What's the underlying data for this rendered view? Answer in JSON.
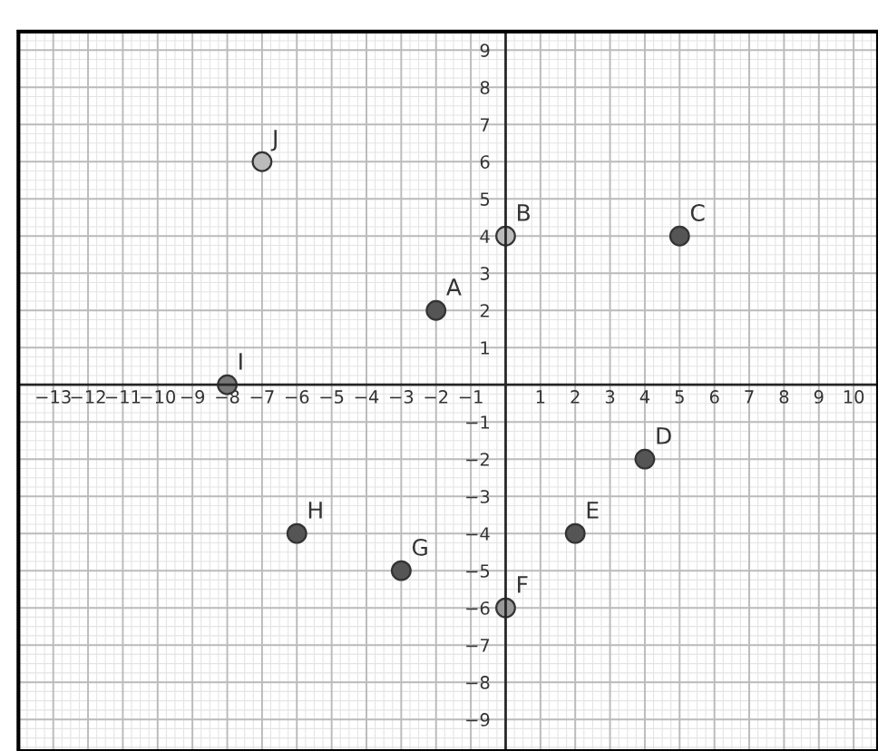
{
  "chart_data": {
    "type": "scatter",
    "x": [
      -2,
      0,
      5,
      4,
      2,
      0,
      -3,
      -6,
      -8,
      -7
    ],
    "values": [
      2,
      4,
      4,
      -2,
      -4,
      -6,
      -5,
      -4,
      0,
      6
    ],
    "colors": [
      "#555555",
      "#bbbbbb",
      "#555555",
      "#555555",
      "#555555",
      "#999999",
      "#555555",
      "#555555",
      "#777777",
      "#bbbbbb"
    ],
    "annotations": [
      {
        "text": "A",
        "x": -2,
        "y": 2
      },
      {
        "text": "B",
        "x": 0,
        "y": 4
      },
      {
        "text": "C",
        "x": 5,
        "y": 4
      },
      {
        "text": "D",
        "x": 4,
        "y": -2
      },
      {
        "text": "E",
        "x": 2,
        "y": -4
      },
      {
        "text": "F",
        "x": 0,
        "y": -6
      },
      {
        "text": "G",
        "x": -3,
        "y": -5
      },
      {
        "text": "H",
        "x": -6,
        "y": -4
      },
      {
        "text": "I",
        "x": -8,
        "y": 0
      },
      {
        "text": "J",
        "x": -7,
        "y": 6
      }
    ],
    "xlim": [
      -14,
      10.7
    ],
    "ylim": [
      -9.85,
      9.5
    ],
    "xticks": [
      {
        "value": -13,
        "label": "−13"
      },
      {
        "value": -12,
        "label": "−12"
      },
      {
        "value": -11,
        "label": "−11"
      },
      {
        "value": -10,
        "label": "−10"
      },
      {
        "value": -9,
        "label": "−9"
      },
      {
        "value": -8,
        "label": "−8"
      },
      {
        "value": -7,
        "label": "−7"
      },
      {
        "value": -6,
        "label": "−6"
      },
      {
        "value": -5,
        "label": "−5"
      },
      {
        "value": -4,
        "label": "−4"
      },
      {
        "value": -3,
        "label": "−3"
      },
      {
        "value": -2,
        "label": "−2"
      },
      {
        "value": -1,
        "label": "−1"
      },
      1,
      2,
      3,
      4,
      5,
      6,
      7,
      8,
      9,
      10
    ],
    "yticks": [
      {
        "value": -9,
        "label": "−9"
      },
      {
        "value": -8,
        "label": "−8"
      },
      {
        "value": -7,
        "label": "−7"
      },
      {
        "value": -6,
        "label": "−6"
      },
      {
        "value": -5,
        "label": "−5"
      },
      {
        "value": -4,
        "label": "−4"
      },
      {
        "value": -3,
        "label": "−3"
      },
      {
        "value": -2,
        "label": "−2"
      },
      {
        "value": -1,
        "label": "−1"
      },
      1,
      2,
      3,
      4,
      5,
      6,
      7,
      8,
      9
    ],
    "grid": true,
    "marker": "circle"
  }
}
